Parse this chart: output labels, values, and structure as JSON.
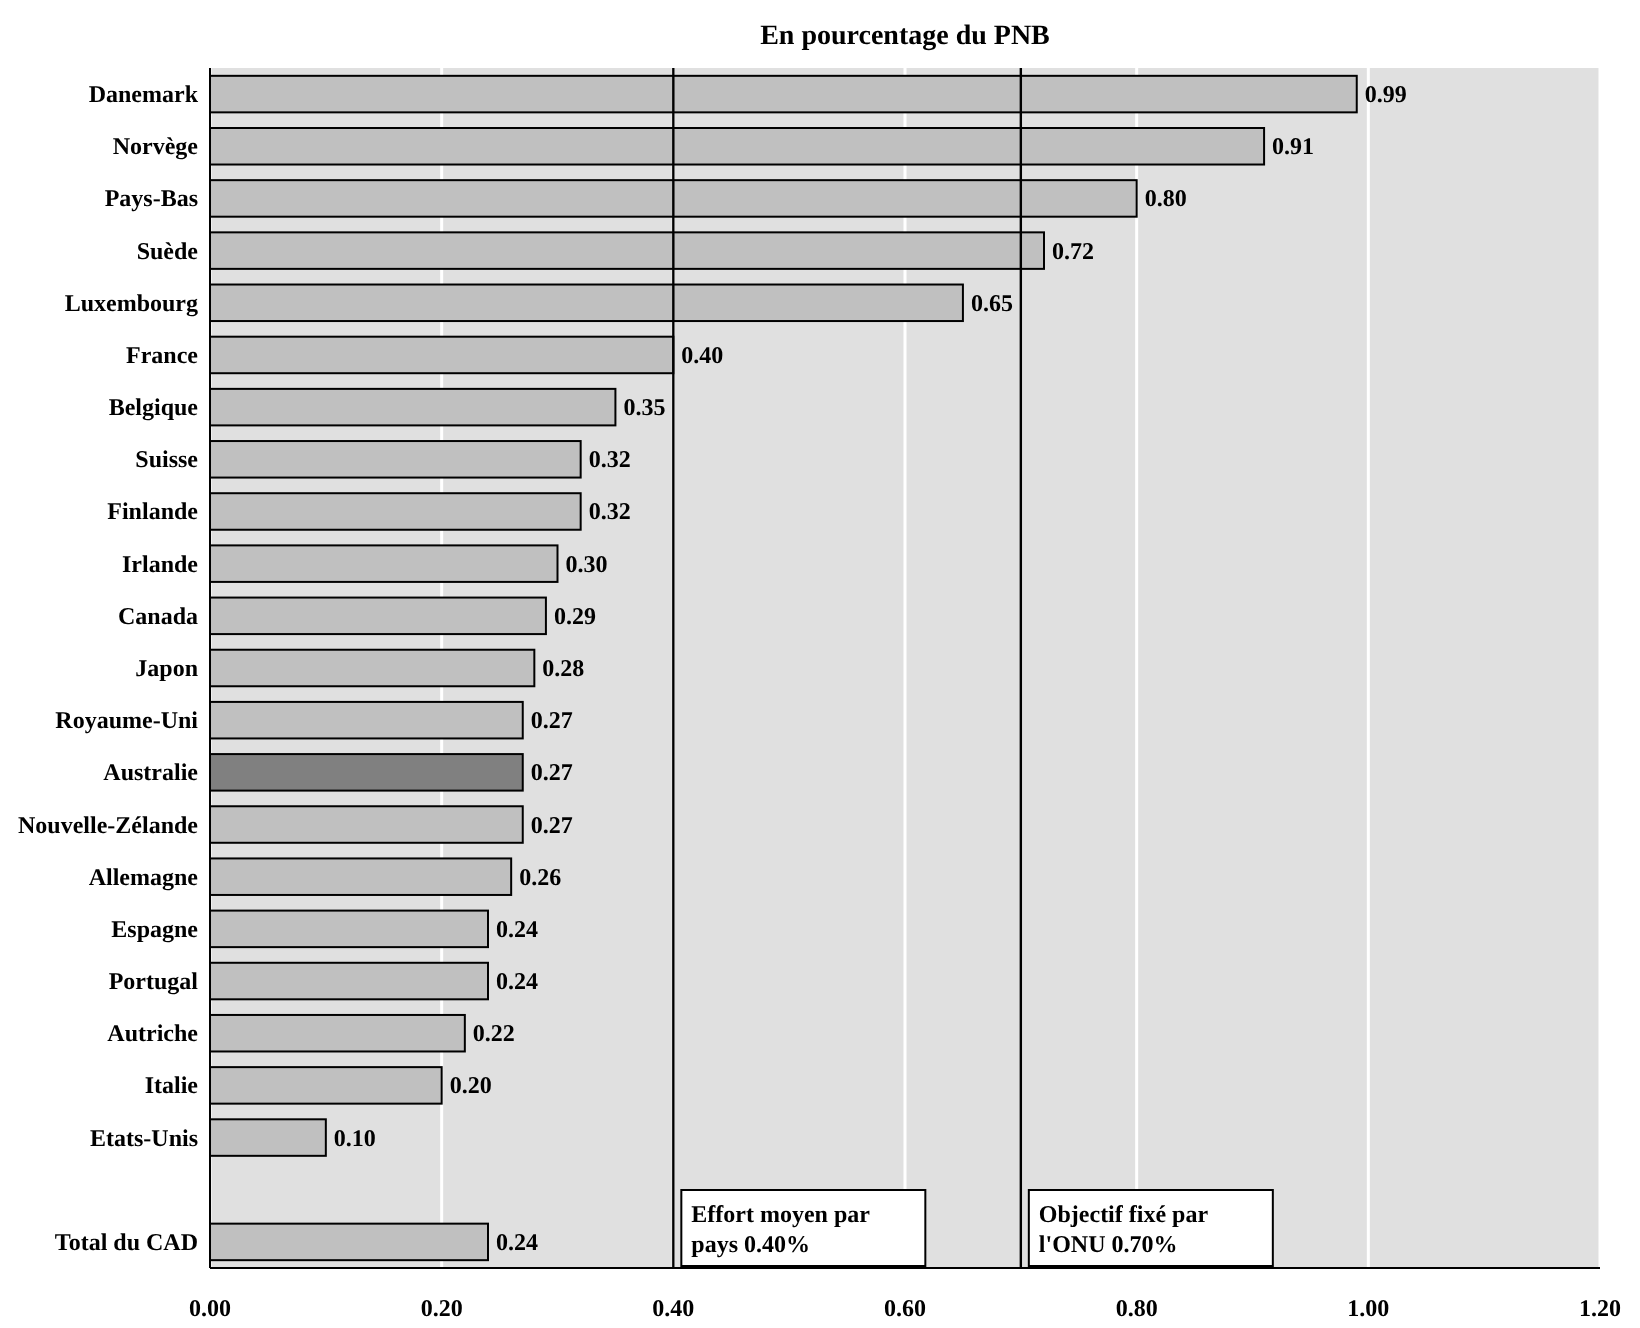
{
  "chart_data": {
    "type": "bar",
    "orientation": "horizontal",
    "title": "En pourcentage du PNB",
    "categories": [
      "Danemark",
      "Norvège",
      "Pays-Bas",
      "Suède",
      "Luxembourg",
      "France",
      "Belgique",
      "Suisse",
      "Finlande",
      "Irlande",
      "Canada",
      "Japon",
      "Royaume-Uni",
      "Australie",
      "Nouvelle-Zélande",
      "Allemagne",
      "Espagne",
      "Portugal",
      "Autriche",
      "Italie",
      "Etats-Unis",
      null,
      "Total du CAD"
    ],
    "values": [
      0.99,
      0.91,
      0.8,
      0.72,
      0.65,
      0.4,
      0.35,
      0.32,
      0.32,
      0.3,
      0.29,
      0.28,
      0.27,
      0.27,
      0.27,
      0.26,
      0.24,
      0.24,
      0.22,
      0.2,
      0.1,
      null,
      0.24
    ],
    "colors": [
      "#c0c0c0",
      "#c0c0c0",
      "#c0c0c0",
      "#c0c0c0",
      "#c0c0c0",
      "#c0c0c0",
      "#c0c0c0",
      "#c0c0c0",
      "#c0c0c0",
      "#c0c0c0",
      "#c0c0c0",
      "#c0c0c0",
      "#c0c0c0",
      "#808080",
      "#c0c0c0",
      "#c0c0c0",
      "#c0c0c0",
      "#c0c0c0",
      "#c0c0c0",
      "#c0c0c0",
      "#c0c0c0",
      "#c0c0c0",
      "#c0c0c0"
    ],
    "xlim": [
      0,
      1.2
    ],
    "xticks": [
      {
        "value": 0,
        "label": "0.00"
      },
      {
        "value": 0.2,
        "label": "0.20"
      },
      {
        "value": 0.4,
        "label": "0.40"
      },
      {
        "value": 0.6,
        "label": "0.60"
      },
      {
        "value": 0.8,
        "label": "0.80"
      },
      {
        "value": 1.0,
        "label": "1.00"
      },
      {
        "value": 1.2,
        "label": "1.20"
      }
    ],
    "grid": "x",
    "value_labels": [
      "0.99",
      "0.91",
      "0.80",
      "0.72",
      "0.65",
      "0.40",
      "0.35",
      "0.32",
      "0.32",
      "0.30",
      "0.29",
      "0.28",
      "0.27",
      "0.27",
      "0.27",
      "0.26",
      "0.24",
      "0.24",
      "0.22",
      "0.20",
      "0.10",
      null,
      "0.24"
    ],
    "ref_lines": [
      {
        "axis": "x",
        "value": 0.4,
        "label": "Effort moyen par pays 0.40%",
        "color": "#000000"
      },
      {
        "axis": "x",
        "value": 0.7,
        "label": "Objectif fixé par l'ONU 0.70%",
        "color": "#000000"
      }
    ]
  }
}
